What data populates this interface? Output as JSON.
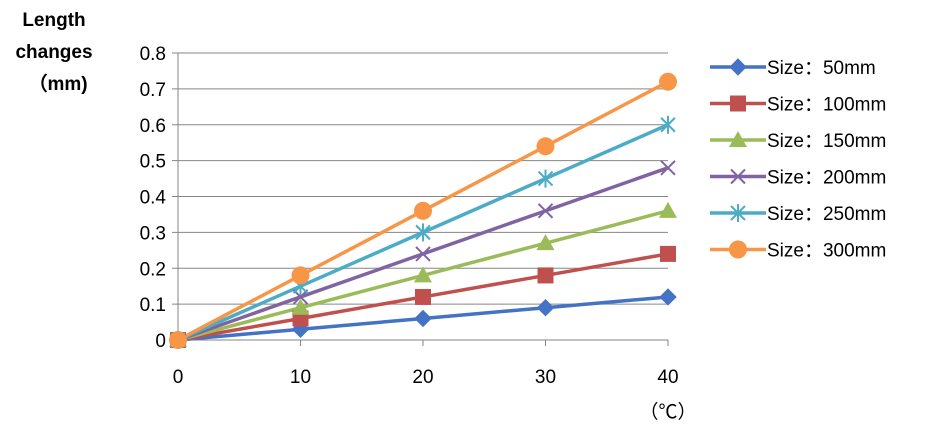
{
  "chart_data": {
    "type": "line",
    "title": "",
    "ylabel_lines": [
      "Length",
      "changes",
      "（mm)"
    ],
    "xlabel": "（℃）",
    "x": [
      0,
      10,
      20,
      30,
      40
    ],
    "xlim": [
      0,
      40
    ],
    "ylim": [
      0,
      0.8
    ],
    "x_ticks": [
      "0",
      "10",
      "20",
      "30",
      "40"
    ],
    "y_ticks": [
      "0",
      "0.1",
      "0.2",
      "0.3",
      "0.4",
      "0.5",
      "0.6",
      "0.7",
      "0.8"
    ],
    "grid": "horizontal",
    "legend_position": "right",
    "series": [
      {
        "name": "Size：50mm",
        "values": [
          0,
          0.03,
          0.06,
          0.09,
          0.12
        ],
        "color": "#4472C4",
        "marker": "diamond"
      },
      {
        "name": "Size：100mm",
        "values": [
          0,
          0.06,
          0.12,
          0.18,
          0.24
        ],
        "color": "#C0504D",
        "marker": "square"
      },
      {
        "name": "Size：150mm",
        "values": [
          0,
          0.09,
          0.18,
          0.27,
          0.36
        ],
        "color": "#9BBB59",
        "marker": "triangle"
      },
      {
        "name": "Size：200mm",
        "values": [
          0,
          0.12,
          0.24,
          0.36,
          0.48
        ],
        "color": "#8064A2",
        "marker": "x"
      },
      {
        "name": "Size：250mm",
        "values": [
          0,
          0.15,
          0.3,
          0.45,
          0.6
        ],
        "color": "#4BACC6",
        "marker": "star"
      },
      {
        "name": "Size：300mm",
        "values": [
          0,
          0.18,
          0.36,
          0.54,
          0.72
        ],
        "color": "#F79646",
        "marker": "circle"
      }
    ]
  }
}
